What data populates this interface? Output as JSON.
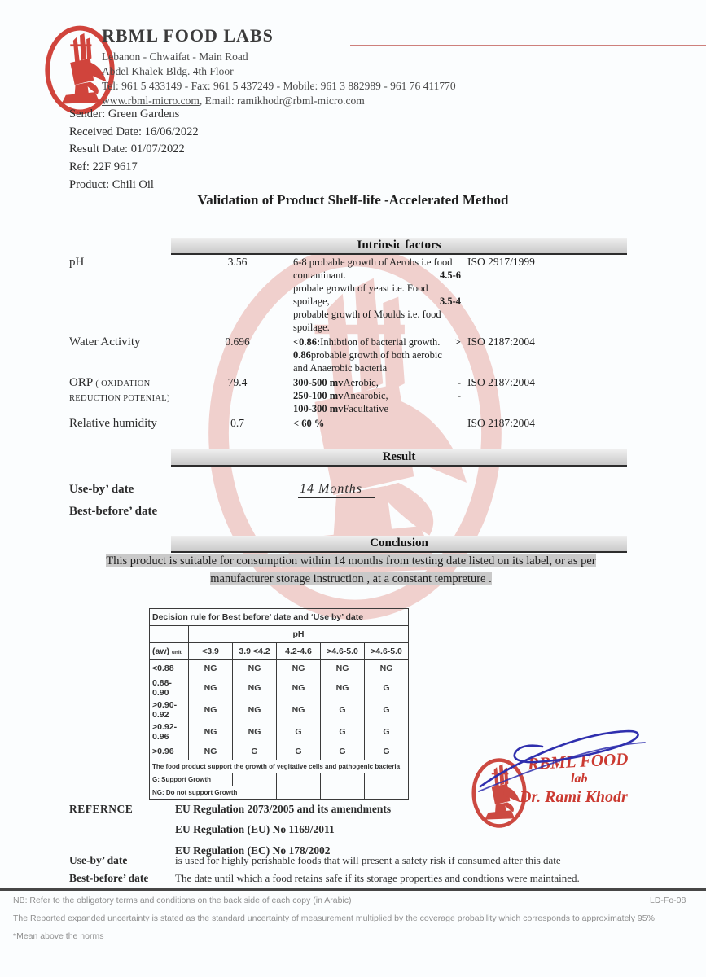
{
  "header": {
    "company": "RBML FOOD LABS",
    "address1": "Lebanon - Chwaifat - Main Road",
    "address2": "Abdel Khalek Bldg. 4th Floor",
    "contact": "Tel: 961 5 433149 - Fax: 961 5 437249 - Mobile: 961 3 882989 - 961 76 411770",
    "web": "www.rbml-micro.com",
    "web_suffix": ", Email: ramikhodr@rbml-micro.com"
  },
  "meta": {
    "lines": [
      "Sender: Green Gardens",
      "Received Date: 16/06/2022",
      "Result Date: 01/07/2022",
      "Ref: 22F 9617",
      "Product: Chili Oil"
    ]
  },
  "title": "Validation of Product Shelf-life -Accelerated Method",
  "intrinsic": {
    "heading": "Intrinsic factors",
    "rows": [
      {
        "param": [
          [
            {
              "t": "pH"
            }
          ]
        ],
        "value": "3.56",
        "desc": [
          [
            {
              "t": "6-8 probable growth of Aerobs i.e food"
            }
          ],
          [
            {
              "t": "contaminant."
            },
            {
              "t": "4.5-6",
              "b": true,
              "push": true
            }
          ],
          [
            {
              "t": "probale growth of yeast  i.e. Food"
            }
          ],
          [
            {
              "t": "spoilage,"
            },
            {
              "t": "3.5-4",
              "b": true,
              "push": true
            }
          ],
          [
            {
              "t": "probable growth of Moulds i.e. food"
            }
          ],
          [
            {
              "t": "spoilage."
            }
          ]
        ],
        "iso": "ISO 2917/1999"
      },
      {
        "param": [
          [
            {
              "t": "Water Activity"
            }
          ]
        ],
        "value": "0.696",
        "desc": [
          [
            {
              "t": "<0.86:",
              "b": true
            },
            {
              "t": " Inhibtion of bacterial growth."
            },
            {
              "t": ">",
              "push": true
            }
          ],
          [
            {
              "t": "0.86",
              "b": true
            },
            {
              "t": " probable growth of both aerobic"
            }
          ],
          [
            {
              "t": "and Anaerobic bacteria"
            }
          ]
        ],
        "iso": "ISO 2187:2004"
      },
      {
        "param": [
          [
            {
              "t": "ORP "
            },
            {
              "t": "( OXIDATION",
              "sm": true
            }
          ],
          [
            {
              "t": "REDUCTION POTENIAL)",
              "sm": true
            }
          ]
        ],
        "value": "79.4",
        "desc": [
          [
            {
              "t": "300-500 mv",
              "b": true
            },
            {
              "t": " Aerobic,"
            },
            {
              "t": "-",
              "push": true
            }
          ],
          [
            {
              "t": "250-100 mv",
              "b": true
            },
            {
              "t": " Anearobic,"
            },
            {
              "t": "-",
              "push": true
            }
          ],
          [
            {
              "t": "100-300 mv",
              "b": true
            },
            {
              "t": " Facultative"
            }
          ]
        ],
        "iso": "ISO 2187:2004"
      },
      {
        "param": [
          [
            {
              "t": "Relative humidity"
            }
          ]
        ],
        "value": "0.7",
        "desc": [
          [
            {
              "t": "< 60 %",
              "b": true
            }
          ]
        ],
        "iso": "ISO 2187:2004"
      }
    ]
  },
  "result": {
    "heading": "Result",
    "label1": "Use-by’ date",
    "label2": "Best-before’ date",
    "value": "14  Months"
  },
  "conclusion": {
    "heading": "Conclusion",
    "line1": "This product is suitable for consumption within 14 months   from testing  date listed on its label, or as per",
    "line2": "manufacturer storage instruction , at a constant tempreture    ."
  },
  "decision": {
    "title": "Decision rule  for Best before’ date  and ‘Use by’ date",
    "ph_label": "pH",
    "col_headers": [
      "(aw)|unit",
      "<3.9",
      "3.9 <4.2",
      "4.2-4.6",
      ">4.6-5.0",
      ">4.6-5.0"
    ],
    "rows": [
      [
        "<0.88",
        "NG",
        "NG",
        "NG",
        "NG",
        "NG"
      ],
      [
        "0.88-0.90",
        "NG",
        "NG",
        "NG",
        "NG",
        "G"
      ],
      [
        ">0.90-0.92",
        "NG",
        "NG",
        "NG",
        "G",
        "G"
      ],
      [
        ">0.92-0.96",
        "NG",
        "NG",
        "G",
        "G",
        "G"
      ],
      [
        ">0.96",
        "NG",
        "G",
        "G",
        "G",
        "G"
      ]
    ],
    "note": "The food product support the growth of vegitative cells and pathogenic bacteria",
    "legend_g": "G: Support Growth",
    "legend_ng": "NG: Do not support Growth"
  },
  "stamp": {
    "line1": "RBML FOOD",
    "line2": "lab",
    "line3": "Dr. Rami Khodr"
  },
  "reference": {
    "label": "REFERNCE",
    "items": [
      "EU Regulation 2073/2005 and its amendments",
      "EU  Regulation (EU)  No 1169/2011",
      "EU Regulation (EC) No 178/2002"
    ],
    "def1_label": "Use-by’ date",
    "def1_text": "is used for highly perishable foods that will present a safety risk if consumed after this date",
    "def2_label": "Best-before’ date",
    "def2_text": "The date until which a food retains safe if  its storage  properties and condtions  were maintained."
  },
  "footer": {
    "nb": "NB: Refer to the obligatory terms and conditions on the back side of each copy (in Arabic)",
    "code": "LD-Fo-08",
    "line2": "The Reported expanded uncertainty is stated as the standard uncertainty of measurement multiplied by the coverage probability which corresponds to approximately 95%",
    "line3": "*Mean above the norms"
  },
  "colors": {
    "logo_red": "#d0443c",
    "stamp_red": "#c93a31",
    "signature_blue": "#2f2fae",
    "bar_gray": "#c9c9c9",
    "highlight_gray": "#c9c9c9"
  }
}
